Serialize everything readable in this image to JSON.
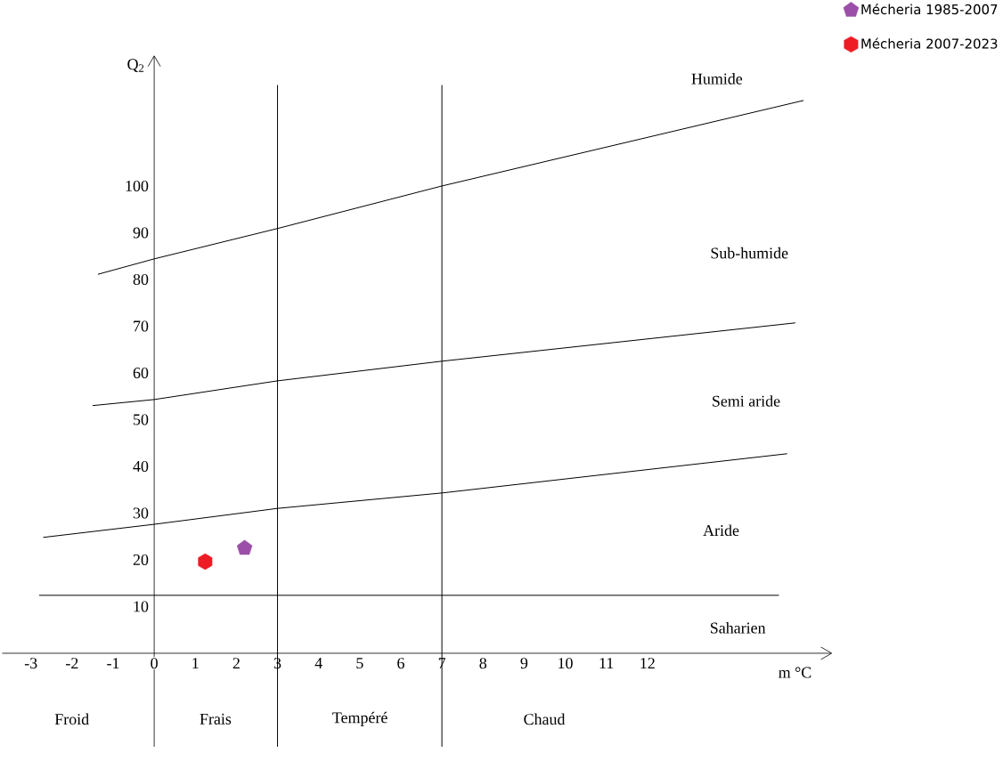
{
  "chart_data": {
    "type": "line",
    "xlabel": "m °C",
    "ylabel": "Q$_{2}$",
    "xlim": [
      -3.7,
      16.5
    ],
    "ylim": [
      -20,
      128
    ],
    "xticks": [
      -3,
      -2,
      -1,
      0,
      1,
      2,
      3,
      4,
      5,
      6,
      7,
      8,
      9,
      10,
      11,
      12
    ],
    "yticks": [
      10,
      20,
      30,
      40,
      50,
      60,
      70,
      80,
      90,
      100
    ],
    "legend": "top right",
    "series": [
      {
        "color": "#000000",
        "x": [
          -1.37,
          0,
          3,
          7,
          15.8
        ],
        "values": [
          81.1,
          84.4,
          90.9,
          100,
          118.3
        ]
      },
      {
        "color": "#000000",
        "x": [
          -1.5,
          0,
          3,
          7,
          15.6
        ],
        "values": [
          53,
          54.3,
          58.3,
          62.5,
          70.7
        ]
      },
      {
        "color": "#000000",
        "x": [
          -2.7,
          0,
          3,
          7,
          15.4
        ],
        "values": [
          24.8,
          27.6,
          31,
          34.3,
          42.7
        ]
      },
      {
        "color": "#000000",
        "x": [
          -2.8,
          15.2
        ],
        "values": [
          12.4,
          12.4
        ]
      },
      {
        "type": "scatter",
        "name": "Mécheria 1985-2007",
        "color": "#9b4fa8",
        "x": [
          2.2
        ],
        "values": [
          22.5
        ]
      },
      {
        "type": "scatter",
        "name": "Mécheria 2007-2023",
        "color": "#ee1c25",
        "x": [
          1.24
        ],
        "values": [
          19.6
        ]
      }
    ],
    "ref_lines": [
      {
        "axis": "x",
        "value": 3,
        "color": "#000000"
      },
      {
        "axis": "x",
        "value": 7,
        "color": "#000000"
      }
    ],
    "annotations": [
      "Humide",
      "Sub-humide",
      "Semi aride",
      "Aride",
      "Saharien",
      "Froid",
      "Frais",
      "Tempéré",
      "Chaud"
    ]
  }
}
